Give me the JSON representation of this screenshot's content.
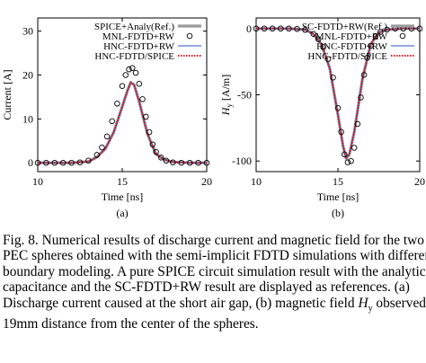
{
  "chart_data": [
    {
      "type": "line",
      "panel_label": "(a)",
      "xlabel": "Time [ns]",
      "ylabel": "Current [A]",
      "xlim": [
        10,
        20
      ],
      "ylim": [
        -2,
        33
      ],
      "xticks": [
        "10",
        "15",
        "20"
      ],
      "yticks": [
        "0",
        "10",
        "20",
        "30"
      ],
      "legend_position": "top-right",
      "series": [
        {
          "name": "SPICE+Analy(Ref.)",
          "style": "thick gray line",
          "x": [
            10,
            12,
            13,
            13.5,
            14,
            14.5,
            15,
            15.3,
            15.5,
            15.7,
            16,
            16.5,
            17,
            17.5,
            18,
            19,
            20
          ],
          "y": [
            0,
            0,
            0.3,
            1.3,
            3.2,
            7,
            12.8,
            16.3,
            18.3,
            17.8,
            14,
            6.5,
            2,
            0.7,
            0.2,
            0,
            0
          ]
        },
        {
          "name": "MNL-FDTD+RW",
          "style": "open circles",
          "x": [
            10,
            10.5,
            11,
            11.5,
            12,
            12.5,
            13,
            13.5,
            13.8,
            14.1,
            14.4,
            14.7,
            15,
            15.2,
            15.4,
            15.6,
            15.8,
            16,
            16.2,
            16.4,
            16.6,
            16.8,
            17,
            17.3,
            17.6,
            18,
            18.5,
            19,
            19.5,
            20
          ],
          "y": [
            0,
            0,
            0,
            0,
            0,
            0.1,
            0.5,
            1.8,
            3.5,
            6,
            9.5,
            13.5,
            17.5,
            20,
            21.3,
            21.6,
            20.5,
            18,
            14.5,
            10.5,
            7,
            4.2,
            2.5,
            1.2,
            0.5,
            0.1,
            0,
            0,
            0,
            0
          ]
        },
        {
          "name": "HNC-FDTD+RW",
          "style": "thin blue line",
          "x": [
            10,
            12,
            13,
            13.5,
            14,
            14.5,
            15,
            15.3,
            15.5,
            15.7,
            16,
            16.5,
            17,
            17.5,
            18,
            19,
            20
          ],
          "y": [
            0,
            0,
            0.3,
            1.3,
            3.2,
            7,
            12.8,
            16.3,
            18.3,
            17.8,
            14,
            6.5,
            2,
            0.7,
            0.2,
            0,
            0
          ]
        },
        {
          "name": "HNC-FDTD/SPICE",
          "style": "red dotted line",
          "x": [
            10,
            12,
            13,
            13.5,
            14,
            14.5,
            15,
            15.3,
            15.5,
            15.7,
            16,
            16.5,
            17,
            17.5,
            18,
            19,
            20
          ],
          "y": [
            0,
            0,
            0.3,
            1.3,
            3.2,
            7,
            12.8,
            16.3,
            18.3,
            17.8,
            14,
            6.5,
            2,
            0.7,
            0.2,
            0,
            0
          ]
        }
      ]
    },
    {
      "type": "line",
      "panel_label": "(b)",
      "xlabel": "Time [ns]",
      "ylabel_main": "H",
      "ylabel_sub": "y",
      "ylabel_unit": "[A/m]",
      "xlim": [
        10,
        20
      ],
      "ylim": [
        -108,
        8
      ],
      "xticks": [
        "10",
        "15",
        "20"
      ],
      "yticks": [
        "0",
        "-50",
        "-100"
      ],
      "legend_position": "top-right",
      "series": [
        {
          "name": "SC-FDTD+RW(Ref.)",
          "style": "thick gray line",
          "x": [
            10,
            12,
            13,
            13.5,
            14,
            14.5,
            15,
            15.3,
            15.5,
            15.7,
            16,
            16.5,
            17,
            17.5,
            18,
            19,
            20
          ],
          "y": [
            0,
            0,
            -0.8,
            -4,
            -12,
            -30,
            -65,
            -88,
            -98,
            -95,
            -78,
            -38,
            -12,
            -3,
            -0.8,
            0,
            0
          ]
        },
        {
          "name": "MNL-FDTD+RW",
          "style": "open circles",
          "x": [
            10,
            10.5,
            11,
            11.5,
            12,
            12.5,
            13,
            13.5,
            13.8,
            14.1,
            14.4,
            14.7,
            15,
            15.2,
            15.4,
            15.6,
            15.8,
            16,
            16.2,
            16.4,
            16.6,
            16.8,
            17,
            17.3,
            17.6,
            18,
            18.5,
            19,
            19.5,
            20
          ],
          "y": [
            0,
            0,
            0,
            0,
            0,
            -0.3,
            -1,
            -4,
            -8,
            -14,
            -23,
            -37,
            -60,
            -78,
            -95,
            -101,
            -100,
            -90,
            -72,
            -52,
            -35,
            -22,
            -13,
            -6,
            -2.5,
            -0.8,
            0,
            0,
            0,
            0
          ]
        },
        {
          "name": "HNC-FDTD+RW",
          "style": "thin blue line",
          "x": [
            10,
            12,
            13,
            13.5,
            14,
            14.5,
            15,
            15.3,
            15.5,
            15.7,
            16,
            16.5,
            17,
            17.5,
            18,
            19,
            20
          ],
          "y": [
            0,
            0,
            -0.8,
            -4,
            -12,
            -30,
            -65,
            -88,
            -98,
            -95,
            -78,
            -38,
            -12,
            -3,
            -0.8,
            0,
            0
          ]
        },
        {
          "name": "HNC-FDTD/SPICE",
          "style": "red dotted line",
          "x": [
            10,
            12,
            13,
            13.5,
            14,
            14.5,
            15,
            15.3,
            15.5,
            15.7,
            16,
            16.5,
            17,
            17.5,
            18,
            19,
            20
          ],
          "y": [
            0,
            0,
            -0.8,
            -4,
            -12,
            -30,
            -65,
            -88,
            -98,
            -95,
            -78,
            -38,
            -12,
            -3,
            -0.8,
            0,
            0
          ]
        }
      ]
    }
  ],
  "caption": {
    "lines": [
      "Fig. 8. Numerical results of discharge current and magnetic field for the two",
      "PEC spheres obtained with the semi-implicit FDTD simulations with different",
      "boundary modeling. A pure SPICE circuit simulation result with the analytical",
      "capacitance and the SC-FDTD+RW result are displayed as references. (a)",
      "Discharge current caused at the short air gap, (b) magnetic field ",
      "observed at",
      "19mm distance from the center of the spheres."
    ],
    "math_main": "H",
    "math_sub": "y"
  },
  "colors": {
    "reference_line": "#9a9a9a",
    "hnc_rw_line": "#2b4fc8",
    "hnc_spice_line": "#e0141e",
    "markers": "#000000"
  }
}
